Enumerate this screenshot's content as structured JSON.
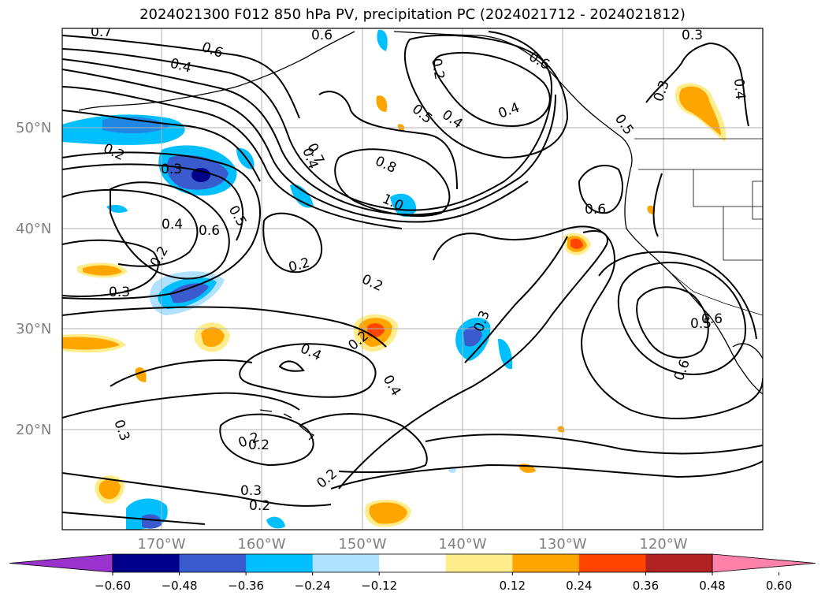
{
  "title": "2024021300 F012 850 hPa PV, precipitation PC (2024021712 - 2024021812)",
  "map": {
    "lat_labels": [
      "50°N",
      "40°N",
      "30°N",
      "20°N"
    ],
    "lon_labels": [
      "170°W",
      "160°W",
      "150°W",
      "140°W",
      "130°W",
      "120°W"
    ],
    "contour_labels": [
      "0.7",
      "0.6",
      "0.6",
      "0.6",
      "0.4",
      "0.3",
      "0.2",
      "0.3",
      "0.4",
      "0.5",
      "0.4",
      "0.2",
      "0.5",
      "0.6",
      "0.4",
      "0.4",
      "0.2",
      "0.3",
      "0.4",
      "0.6",
      "0.5",
      "0.2",
      "0.3",
      "0.7",
      "0.8",
      "1.0",
      "0.6",
      "0.2",
      "0.2",
      "0.4",
      "0.2",
      "0.4",
      "0.3",
      "0.5",
      "0.6",
      "0.3",
      "0.2",
      "0.3",
      "0.2",
      "0.2"
    ]
  },
  "colorbar": {
    "ticks": [
      "−0.60",
      "−0.48",
      "−0.36",
      "−0.24",
      "−0.12",
      "0.12",
      "0.24",
      "0.36",
      "0.48",
      "0.60"
    ],
    "colors": [
      "#9a32cd",
      "#00008b",
      "#3a5bcd",
      "#00bfff",
      "#b0e2ff",
      "#ffffff",
      "#ffec8b",
      "#ffa500",
      "#ff4500",
      "#b22222",
      "#ff82ab"
    ]
  }
}
